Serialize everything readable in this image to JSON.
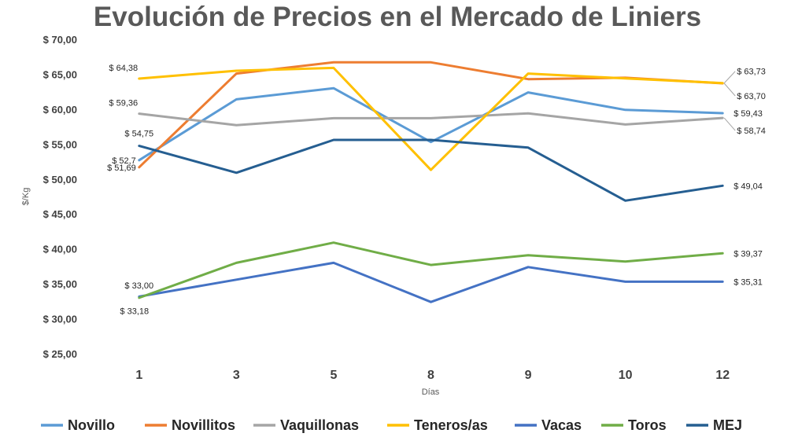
{
  "chart_data": {
    "type": "line",
    "title": "Evolución de Precios en el Mercado de Liniers",
    "xlabel": "Días",
    "ylabel": "$/Kg",
    "categories": [
      "1",
      "3",
      "5",
      "8",
      "9",
      "10",
      "12"
    ],
    "ylim": [
      25,
      70
    ],
    "yticks": [
      "$ 25,00",
      "$ 30,00",
      "$ 35,00",
      "$ 40,00",
      "$ 45,00",
      "$ 50,00",
      "$ 55,00",
      "$ 60,00",
      "$ 65,00",
      "$ 70,00"
    ],
    "grid": false,
    "legend_position": "bottom",
    "series": [
      {
        "name": "Novillo",
        "color": "#5B9BD5",
        "values": [
          52.7,
          61.4,
          63.0,
          55.3,
          62.4,
          59.9,
          59.43
        ],
        "labels": [
          {
            "index": 0,
            "text": "$ 52,7",
            "pos": "left"
          },
          {
            "index": 6,
            "text": "$ 59,43",
            "pos": "right"
          }
        ]
      },
      {
        "name": "Novillitos",
        "color": "#ED7D31",
        "values": [
          51.69,
          65.1,
          66.7,
          66.7,
          64.3,
          64.5,
          63.7
        ],
        "labels": [
          {
            "index": 0,
            "text": "$ 51,69",
            "pos": "left"
          },
          {
            "index": 6,
            "text": "$ 63,70",
            "pos": "right-below"
          }
        ]
      },
      {
        "name": "Vaquillonas",
        "color": "#A5A5A5",
        "values": [
          59.36,
          57.7,
          58.7,
          58.7,
          59.4,
          57.8,
          58.74
        ],
        "labels": [
          {
            "index": 0,
            "text": "$ 59,36",
            "pos": "above-left"
          },
          {
            "index": 6,
            "text": "$ 58,74",
            "pos": "right-below"
          }
        ]
      },
      {
        "name": "Teneros/as",
        "color": "#FFC000",
        "values": [
          64.38,
          65.5,
          65.9,
          51.3,
          65.1,
          64.4,
          63.73
        ],
        "labels": [
          {
            "index": 0,
            "text": "$ 64,38",
            "pos": "above-left"
          },
          {
            "index": 6,
            "text": "$ 63,73",
            "pos": "right-above"
          }
        ]
      },
      {
        "name": "Vacas",
        "color": "#4472C4",
        "values": [
          33.18,
          35.6,
          38.0,
          32.4,
          37.4,
          35.3,
          35.31
        ],
        "labels": [
          {
            "index": 0,
            "text": "$ 33,18",
            "pos": "below"
          },
          {
            "index": 6,
            "text": "$ 35,31",
            "pos": "right"
          }
        ]
      },
      {
        "name": "Toros",
        "color": "#70AD47",
        "values": [
          33.0,
          38.0,
          40.9,
          37.7,
          39.1,
          38.2,
          39.37
        ],
        "labels": [
          {
            "index": 0,
            "text": "$ 33,00",
            "pos": "above"
          },
          {
            "index": 6,
            "text": "$ 39,37",
            "pos": "right"
          }
        ]
      },
      {
        "name": "MEJ",
        "color": "#255E91",
        "values": [
          54.75,
          50.9,
          55.6,
          55.6,
          54.5,
          46.9,
          49.04
        ],
        "labels": [
          {
            "index": 0,
            "text": "$ 54,75",
            "pos": "above"
          },
          {
            "index": 6,
            "text": "$ 49,04",
            "pos": "right"
          }
        ]
      }
    ]
  }
}
